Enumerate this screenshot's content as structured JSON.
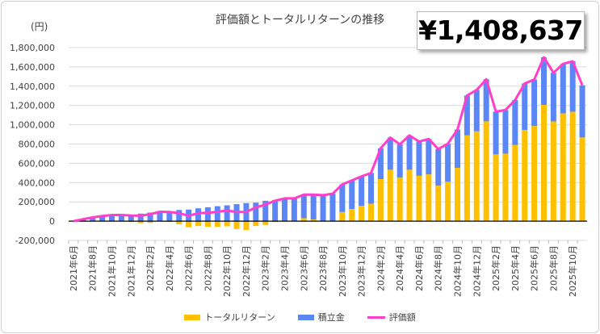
{
  "chart_data": {
    "type": "bar",
    "title": "評価額とトータルリターンの推移",
    "ylabel": "(円)",
    "highlight_value": "¥1,408,637",
    "ylim": [
      -200000,
      1800000
    ],
    "yticks": [
      -200000,
      0,
      200000,
      400000,
      600000,
      800000,
      1000000,
      1200000,
      1400000,
      1600000,
      1800000
    ],
    "ytick_labels": [
      "-200,000",
      "0",
      "200,000",
      "400,000",
      "600,000",
      "800,000",
      "1,000,000",
      "1,200,000",
      "1,400,000",
      "1,600,000",
      "1,800,000"
    ],
    "grid": true,
    "legend_position": "bottom",
    "x": [
      "2021年6月",
      "2021年7月",
      "2021年8月",
      "2021年9月",
      "2021年10月",
      "2021年11月",
      "2021年12月",
      "2022年1月",
      "2022年2月",
      "2022年3月",
      "2022年4月",
      "2022年5月",
      "2022年6月",
      "2022年7月",
      "2022年8月",
      "2022年9月",
      "2022年10月",
      "2022年11月",
      "2022年12月",
      "2023年1月",
      "2023年2月",
      "2023年3月",
      "2023年4月",
      "2023年5月",
      "2023年6月",
      "2023年7月",
      "2023年8月",
      "2023年9月",
      "2023年10月",
      "2023年11月",
      "2023年12月",
      "2024年1月",
      "2024年2月",
      "2024年3月",
      "2024年4月",
      "2024年5月",
      "2024年6月",
      "2024年7月",
      "2024年8月",
      "2024年9月",
      "2024年10月",
      "2024年11月",
      "2024年12月",
      "2025年1月",
      "2025年2月",
      "2025年3月",
      "2025年4月",
      "2025年5月",
      "2025年6月",
      "2025年7月",
      "2025年8月",
      "2025年9月",
      "2025年10月",
      "2025年11月"
    ],
    "series": [
      {
        "name": "トータルリターン",
        "kind": "stacked-bar",
        "color": "#FFC000",
        "values": [
          0,
          0,
          0,
          0,
          0,
          0,
          -8000,
          -22000,
          -17000,
          0,
          -8000,
          -33000,
          -64000,
          -50000,
          -58000,
          -58000,
          -53000,
          -81000,
          -92000,
          -50000,
          -39000,
          -9000,
          0,
          -4000,
          31000,
          17000,
          2000,
          4000,
          94000,
          125000,
          158000,
          181000,
          436000,
          533000,
          450000,
          533000,
          470000,
          484000,
          367000,
          408000,
          553000,
          889000,
          931000,
          1035000,
          692000,
          700000,
          789000,
          945000,
          986000,
          1206000,
          1034000,
          1117000,
          1134000,
          867637
        ]
      },
      {
        "name": "積立金",
        "kind": "stacked-bar",
        "color": "#5B86F5",
        "values": [
          0,
          20000,
          39000,
          53000,
          64000,
          64000,
          66000,
          78000,
          89000,
          97000,
          103000,
          116000,
          120000,
          133000,
          144000,
          155000,
          164000,
          176000,
          187000,
          192000,
          211000,
          220000,
          236000,
          240000,
          244000,
          258000,
          268000,
          280000,
          287000,
          297000,
          306000,
          319000,
          320000,
          334000,
          347000,
          356000,
          355000,
          369000,
          380000,
          395000,
          397000,
          414000,
          430000,
          437000,
          444000,
          453000,
          467000,
          483000,
          483000,
          494000,
          505000,
          514000,
          524000,
          541000
        ]
      },
      {
        "name": "評価額",
        "kind": "line",
        "color": "#FF3FCB",
        "values": [
          0,
          20000,
          39000,
          53000,
          64000,
          64000,
          58000,
          56000,
          72000,
          97000,
          95000,
          83000,
          56000,
          83000,
          86000,
          97000,
          111000,
          95000,
          95000,
          142000,
          172000,
          211000,
          236000,
          236000,
          275000,
          275000,
          270000,
          284000,
          381000,
          422000,
          464000,
          500000,
          756000,
          867000,
          797000,
          889000,
          825000,
          853000,
          747000,
          803000,
          950000,
          1303000,
          1361000,
          1472000,
          1136000,
          1153000,
          1256000,
          1428000,
          1469000,
          1700000,
          1539000,
          1631000,
          1658000,
          1408637
        ]
      }
    ]
  }
}
